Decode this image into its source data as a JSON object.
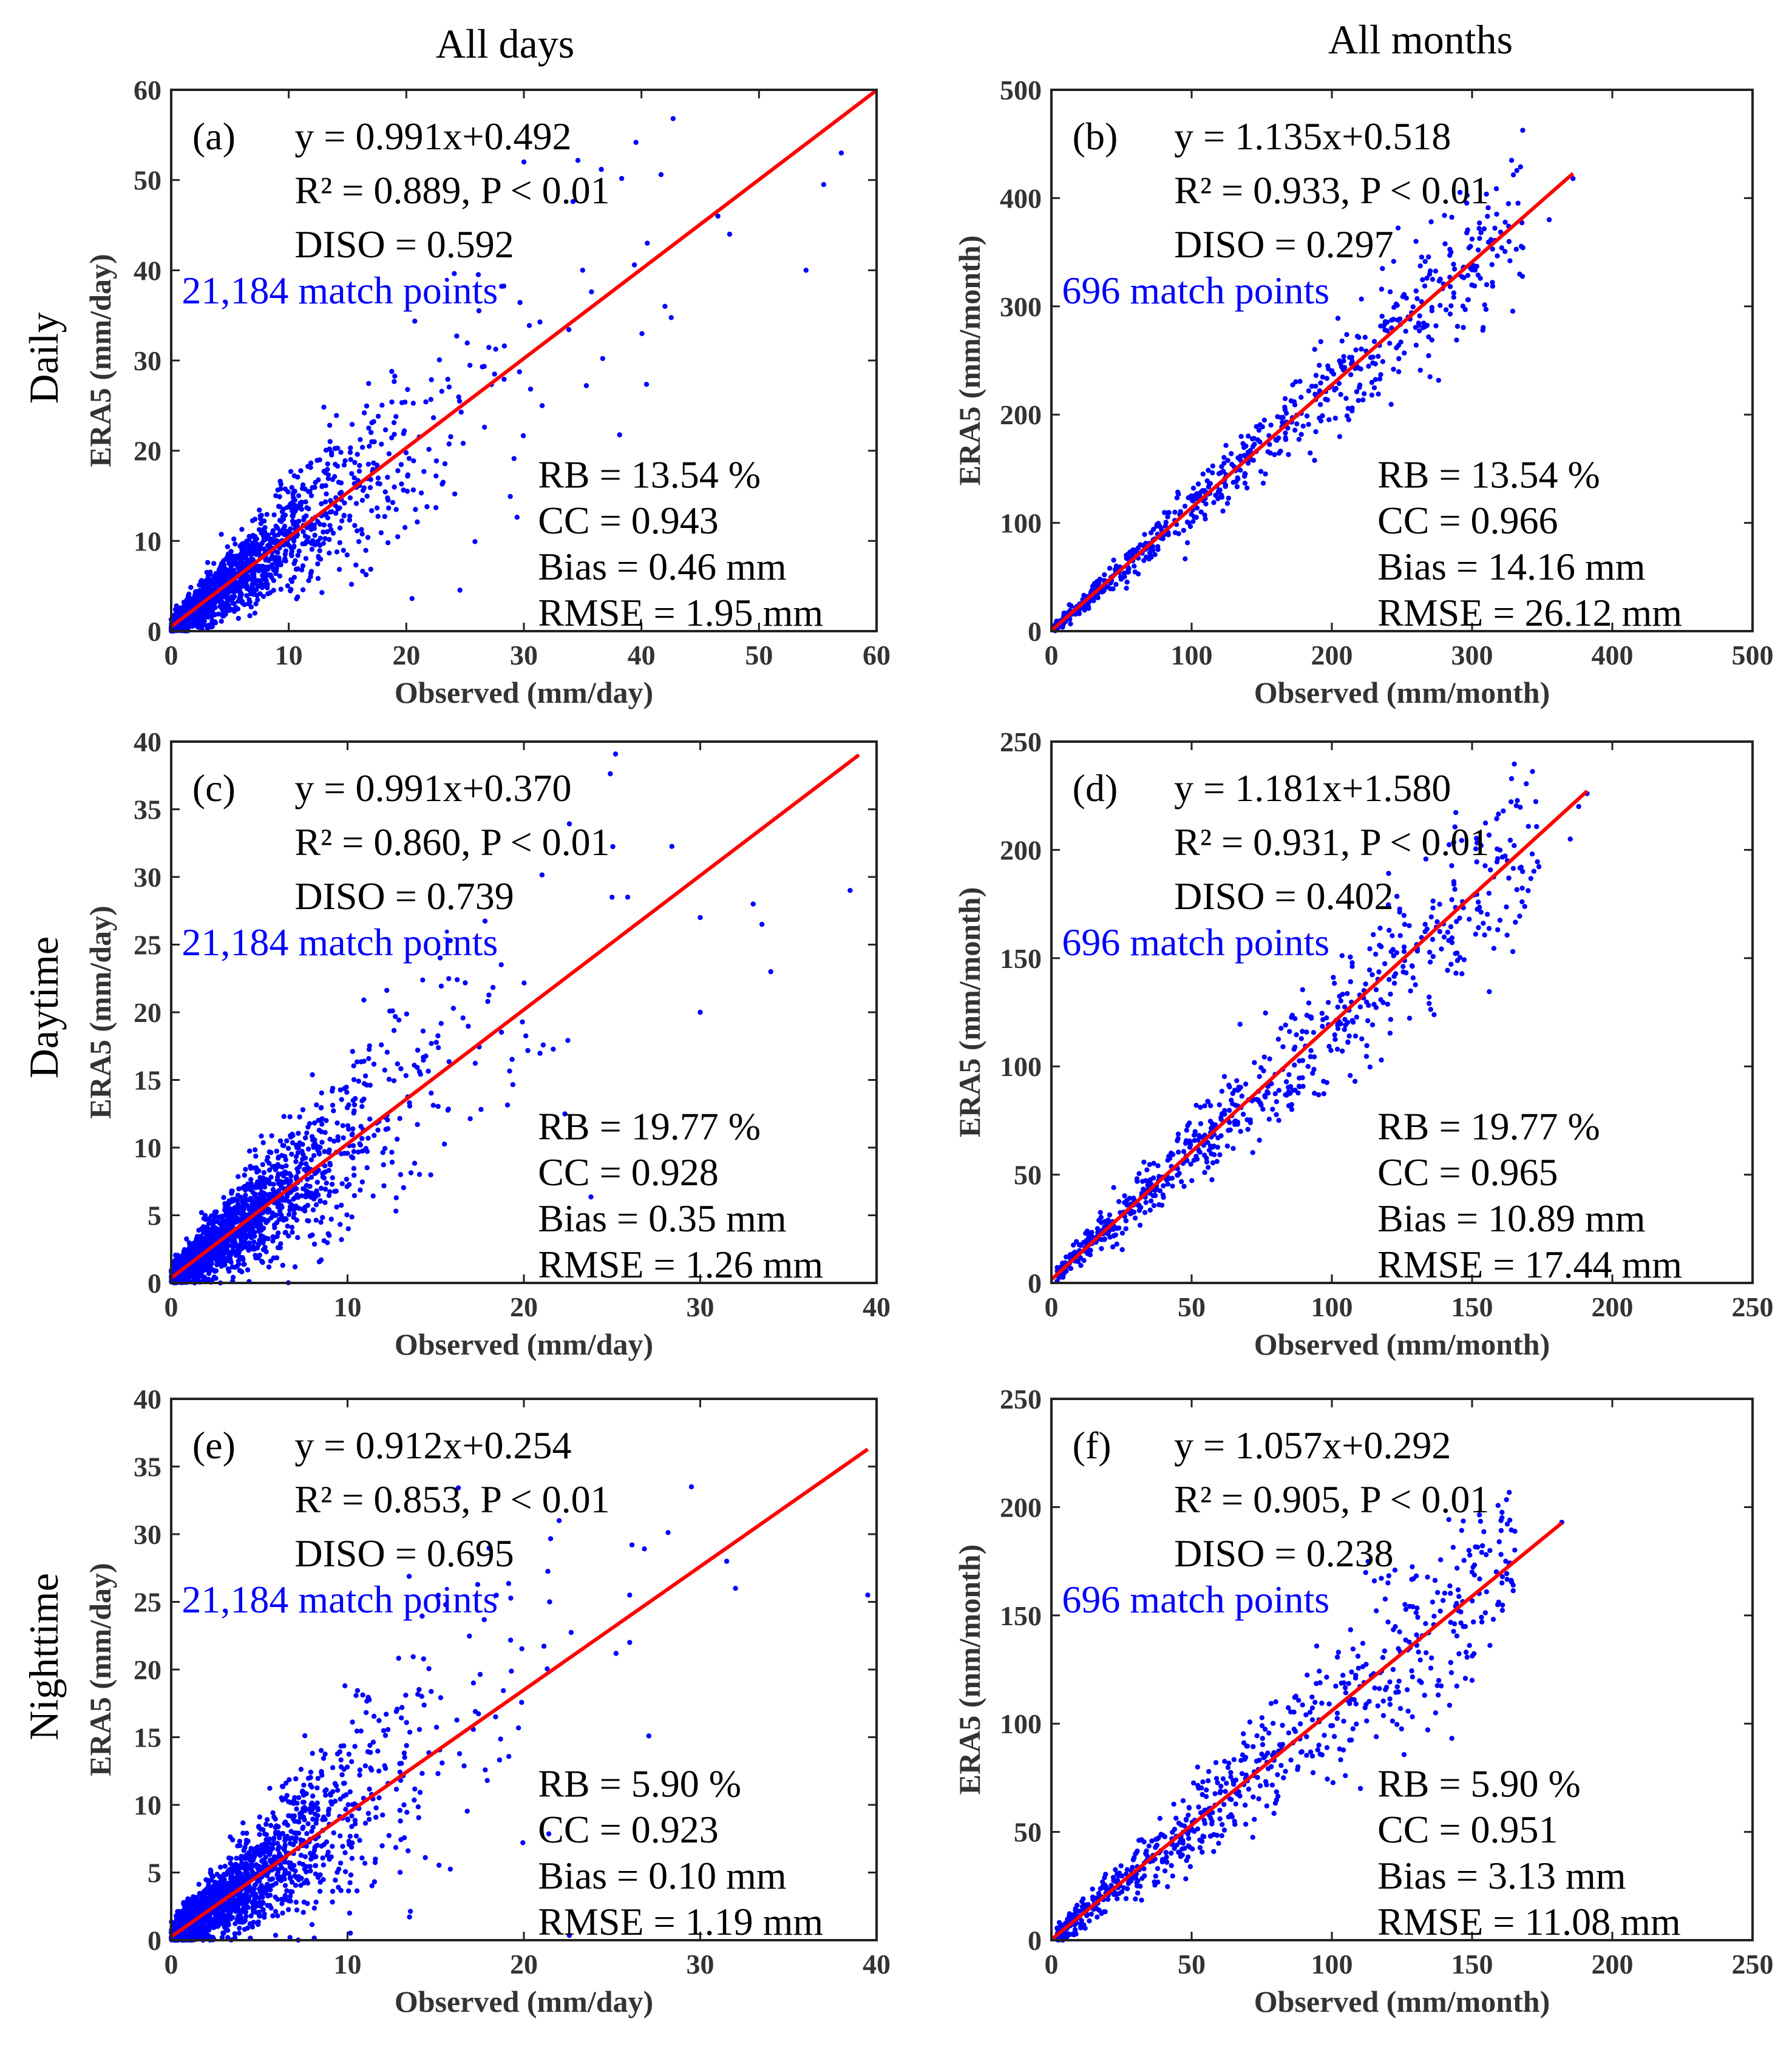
{
  "column_titles": [
    "All days",
    "All months"
  ],
  "row_titles": [
    "Daily",
    "Daytime",
    "Nighttime"
  ],
  "colors": {
    "points": "#0000ff",
    "fit_line": "#ff0000",
    "axes": "#222222"
  },
  "chart_data": [
    {
      "type": "scatter",
      "panel": "(a)",
      "row": "Daily",
      "column": "All days",
      "xlabel": "Observed (mm/day)",
      "ylabel": "ERA5 (mm/day)",
      "xlim": [
        0,
        60
      ],
      "ylim": [
        0,
        60
      ],
      "xticks": [
        0,
        10,
        20,
        30,
        40,
        50,
        60
      ],
      "yticks": [
        0,
        10,
        20,
        30,
        40,
        50,
        60
      ],
      "equation": "y = 0.991x+0.492",
      "slope": 0.991,
      "intercept": 0.492,
      "fit_x_range": [
        0,
        60
      ],
      "r2": "R² = 0.889, P < 0.01",
      "diso": "DISO = 0.592",
      "match_points": "21,184 match points",
      "rb": "RB = 13.54 %",
      "cc": "CC = 0.943",
      "bias": "Bias = 0.46 mm",
      "rmse": "RMSE = 1.95 mm",
      "point_count": 1800,
      "seed": 11,
      "xmax_data": 57,
      "spread": 0.28,
      "bias_k": 1.0,
      "sample_points": [
        [
          57.0,
          53.0
        ],
        [
          55.5,
          49.5
        ],
        [
          54.0,
          40.0
        ],
        [
          47.5,
          44.0
        ],
        [
          46.5,
          46.0
        ],
        [
          42.0,
          36.0
        ],
        [
          40.5,
          43.0
        ],
        [
          35.0,
          40.0
        ],
        [
          30.0,
          52.0
        ]
      ]
    },
    {
      "type": "scatter",
      "panel": "(b)",
      "row": "Daily",
      "column": "All months",
      "xlabel": "Observed (mm/month)",
      "ylabel": "ERA5 (mm/month)",
      "xlim": [
        0,
        500
      ],
      "ylim": [
        0,
        500
      ],
      "xticks": [
        0,
        100,
        200,
        300,
        400,
        500
      ],
      "yticks": [
        0,
        100,
        200,
        300,
        400,
        500
      ],
      "equation": "y = 1.135x+0.518",
      "slope": 1.135,
      "intercept": 0.518,
      "fit_x_range": [
        0,
        372
      ],
      "r2": "R² = 0.933, P < 0.01",
      "diso": "DISO = 0.297",
      "match_points": "696 match points",
      "rb": "RB = 13.54 %",
      "cc": "CC = 0.966",
      "bias": "Bias = 14.16 mm",
      "rmse": "RMSE = 26.12 mm",
      "point_count": 696,
      "seed": 23,
      "xmax_data": 372,
      "spread": 0.1,
      "bias_k": 1.135,
      "sample_points": [
        [
          372.0,
          418.0
        ],
        [
          355.0,
          380.0
        ],
        [
          305.0,
          372.0
        ],
        [
          260.0,
          360.0
        ],
        [
          285.0,
          350.0
        ],
        [
          270.0,
          235.0
        ]
      ]
    },
    {
      "type": "scatter",
      "panel": "(c)",
      "row": "Daytime",
      "column": "All days",
      "xlabel": "Observed (mm/day)",
      "ylabel": "ERA5 (mm/day)",
      "xlim": [
        0,
        40
      ],
      "ylim": [
        0,
        40
      ],
      "xticks": [
        0,
        10,
        20,
        30,
        40
      ],
      "yticks": [
        0,
        5,
        10,
        15,
        20,
        25,
        30,
        35,
        40
      ],
      "equation": "y = 0.991x+0.370",
      "slope": 0.991,
      "intercept": 0.37,
      "fit_x_range": [
        0,
        39
      ],
      "r2": "R² = 0.860, P < 0.01",
      "diso": "DISO = 0.739",
      "match_points": "21,184 match points",
      "rb": "RB = 19.77 %",
      "cc": "CC = 0.928",
      "bias": "Bias = 0.35 mm",
      "rmse": "RMSE = 1.26 mm",
      "point_count": 1800,
      "seed": 37,
      "xmax_data": 38.5,
      "spread": 0.3,
      "bias_k": 1.0,
      "sample_points": [
        [
          38.5,
          29.0
        ],
        [
          33.0,
          28.0
        ],
        [
          33.5,
          26.5
        ],
        [
          34.0,
          23.0
        ],
        [
          30.0,
          27.0
        ],
        [
          30.0,
          20.0
        ],
        [
          25.0,
          28.5
        ]
      ]
    },
    {
      "type": "scatter",
      "panel": "(d)",
      "row": "Daytime",
      "column": "All months",
      "xlabel": "Observed (mm/month)",
      "ylabel": "ERA5 (mm/month)",
      "xlim": [
        0,
        250
      ],
      "ylim": [
        0,
        250
      ],
      "xticks": [
        0,
        50,
        100,
        150,
        200,
        250
      ],
      "yticks": [
        0,
        50,
        100,
        150,
        200,
        250
      ],
      "equation": "y = 1.181x+1.580",
      "slope": 1.181,
      "intercept": 1.58,
      "fit_x_range": [
        0,
        191
      ],
      "r2": "R² = 0.931, P < 0.01",
      "diso": "DISO = 0.402",
      "match_points": "696 match points",
      "rb": "RB = 19.77 %",
      "cc": "CC = 0.965",
      "bias": "Bias = 10.89 mm",
      "rmse": "RMSE = 17.44 mm",
      "point_count": 696,
      "seed": 51,
      "xmax_data": 191,
      "spread": 0.12,
      "bias_k": 1.181,
      "sample_points": [
        [
          191.0,
          226.0
        ],
        [
          188.0,
          220.0
        ],
        [
          185.0,
          205.0
        ],
        [
          168.0,
          190.0
        ],
        [
          165.0,
          202.0
        ]
      ]
    },
    {
      "type": "scatter",
      "panel": "(e)",
      "row": "Nighttime",
      "column": "All days",
      "xlabel": "Observed (mm/day)",
      "ylabel": "ERA5 (mm/day)",
      "xlim": [
        0,
        40
      ],
      "ylim": [
        0,
        40
      ],
      "xticks": [
        0,
        10,
        20,
        30,
        40
      ],
      "yticks": [
        0,
        5,
        10,
        15,
        20,
        25,
        30,
        35,
        40
      ],
      "equation": "y = 0.912x+0.254",
      "slope": 0.912,
      "intercept": 0.254,
      "fit_x_range": [
        0,
        39.5
      ],
      "r2": "R² = 0.853, P < 0.01",
      "diso": "DISO = 0.695",
      "match_points": "21,184 match points",
      "rb": "RB = 5.90 %",
      "cc": "CC = 0.923",
      "bias": "Bias = 0.10 mm",
      "rmse": "RMSE = 1.19 mm",
      "point_count": 1800,
      "seed": 67,
      "xmax_data": 39.5,
      "spread": 0.32,
      "bias_k": 0.95,
      "sample_points": [
        [
          39.5,
          25.5
        ],
        [
          31.5,
          28.0
        ],
        [
          32.0,
          26.0
        ],
        [
          29.5,
          33.5
        ],
        [
          26.0,
          22.0
        ],
        [
          22.0,
          31.0
        ],
        [
          26.0,
          25.5
        ]
      ]
    },
    {
      "type": "scatter",
      "panel": "(f)",
      "row": "Nighttime",
      "column": "All months",
      "xlabel": "Observed (mm/month)",
      "ylabel": "ERA5 (mm/month)",
      "xlim": [
        0,
        250
      ],
      "ylim": [
        0,
        250
      ],
      "xticks": [
        0,
        50,
        100,
        150,
        200,
        250
      ],
      "yticks": [
        0,
        50,
        100,
        150,
        200,
        250
      ],
      "equation": "y = 1.057x+0.292",
      "slope": 1.057,
      "intercept": 0.292,
      "fit_x_range": [
        0,
        182
      ],
      "r2": "R² = 0.905, P < 0.01",
      "diso": "DISO = 0.238",
      "match_points": "696 match points",
      "rb": "RB = 5.90 %",
      "cc": "CC = 0.951",
      "bias": "Bias = 3.13 mm",
      "rmse": "RMSE = 11.08 mm",
      "point_count": 696,
      "seed": 79,
      "xmax_data": 182,
      "spread": 0.14,
      "bias_k": 1.057,
      "sample_points": [
        [
          182.0,
          193.0
        ],
        [
          162.0,
          175.0
        ],
        [
          150.0,
          170.0
        ],
        [
          150.0,
          120.0
        ],
        [
          137.0,
          105.0
        ],
        [
          120.0,
          165.0
        ]
      ]
    }
  ]
}
